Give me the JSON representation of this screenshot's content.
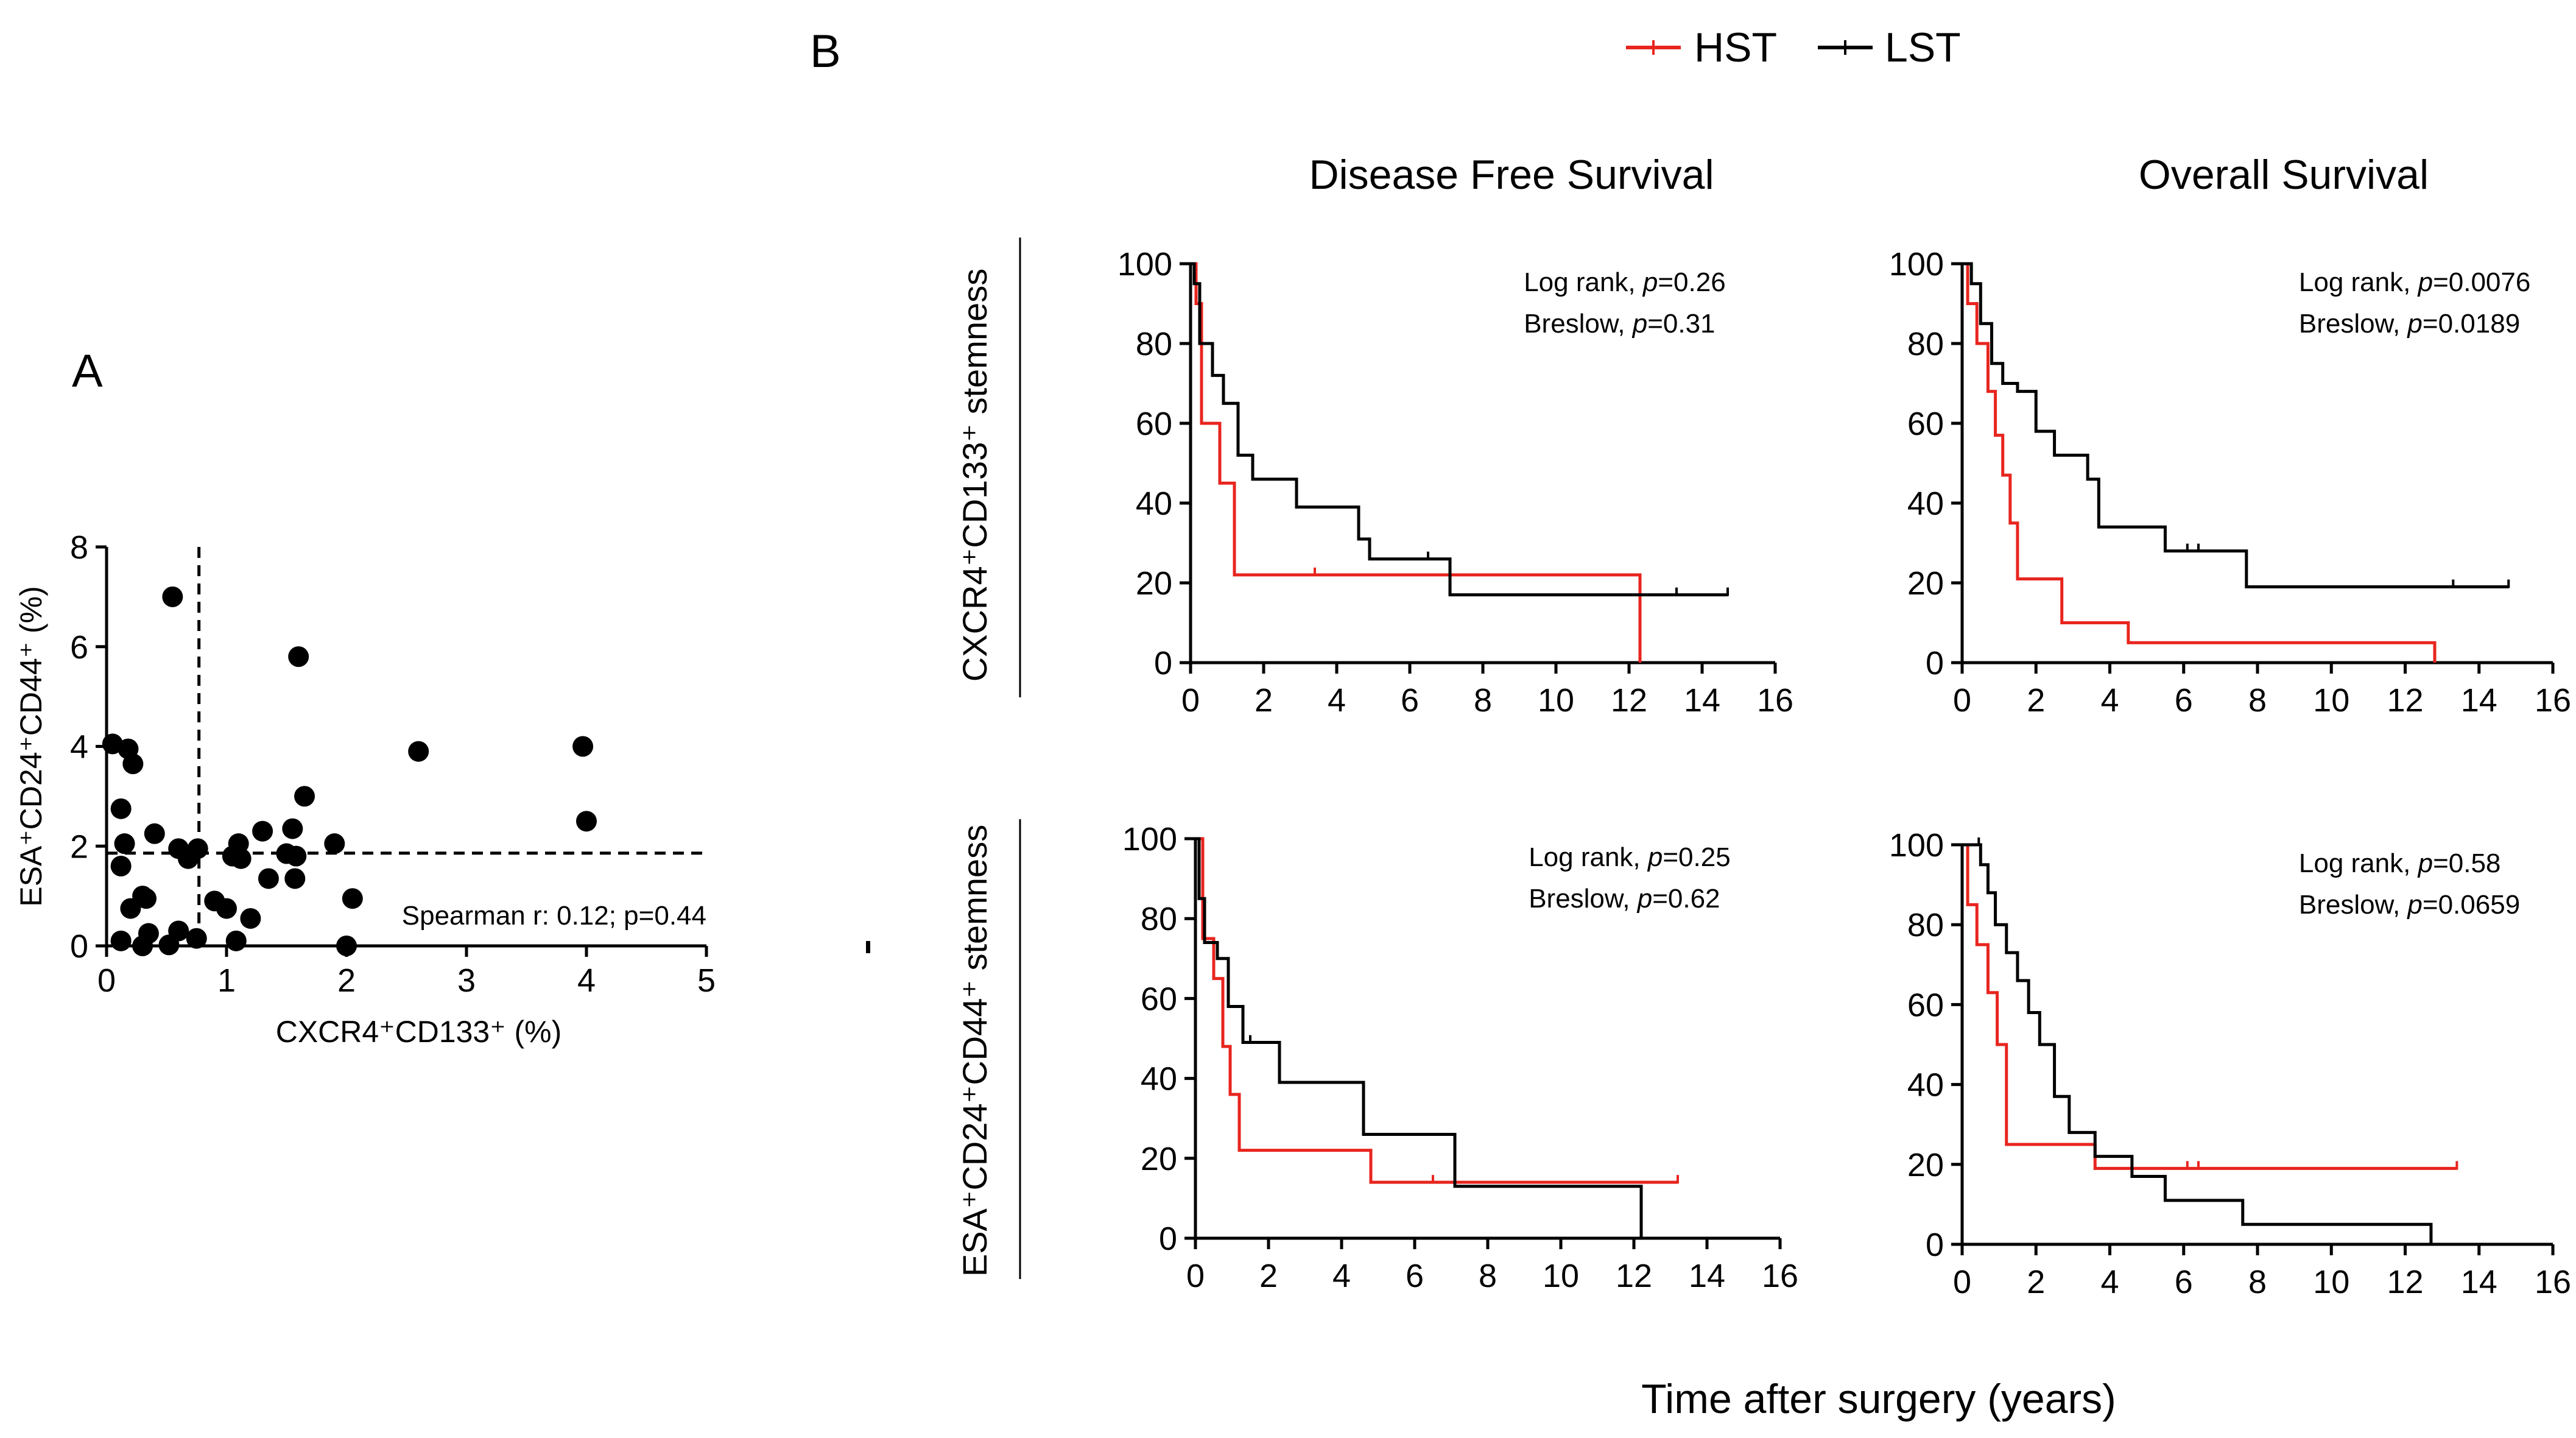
{
  "figure": {
    "panel_a_label": "A",
    "panel_b_label": "B",
    "legend": [
      {
        "name": "HST",
        "color": "#e8251f"
      },
      {
        "name": "LST",
        "color": "#000000"
      }
    ],
    "column_titles": [
      "Disease Free Survival",
      "Overall Survival"
    ],
    "row_labels": [
      "CXCR4⁺CD133⁺ stemness",
      "ESA⁺CD24⁺CD44⁺ stemness"
    ],
    "shared_xlabel": "Time after surgery (years)"
  },
  "chart_data": [
    {
      "id": "A",
      "type": "scatter",
      "xlabel": "CXCR4⁺CD133⁺ (%)",
      "ylabel": "ESA⁺CD24⁺CD44⁺ (%)",
      "xlim": [
        0,
        5
      ],
      "ylim": [
        0,
        8
      ],
      "xticks": [
        0,
        1,
        2,
        3,
        4,
        5
      ],
      "yticks": [
        0,
        2,
        4,
        6,
        8
      ],
      "cutoff_x": 0.77,
      "cutoff_y": 1.86,
      "annotation": "Spearman r: 0.12; p=0.44",
      "points": [
        [
          0.05,
          4.05
        ],
        [
          0.18,
          3.95
        ],
        [
          0.22,
          3.65
        ],
        [
          0.12,
          2.75
        ],
        [
          0.15,
          2.05
        ],
        [
          0.12,
          1.6
        ],
        [
          0.2,
          0.75
        ],
        [
          0.12,
          0.1
        ],
        [
          0.3,
          1.0
        ],
        [
          0.33,
          0.95
        ],
        [
          0.4,
          2.25
        ],
        [
          0.35,
          0.25
        ],
        [
          0.3,
          0.0
        ],
        [
          0.52,
          0.02
        ],
        [
          0.6,
          1.95
        ],
        [
          0.6,
          0.3
        ],
        [
          0.68,
          1.75
        ],
        [
          0.76,
          1.95
        ],
        [
          0.75,
          0.15
        ],
        [
          0.55,
          7.0
        ],
        [
          0.9,
          0.9
        ],
        [
          1.0,
          0.75
        ],
        [
          1.05,
          1.8
        ],
        [
          1.1,
          2.05
        ],
        [
          1.08,
          0.1
        ],
        [
          1.12,
          1.75
        ],
        [
          1.2,
          0.55
        ],
        [
          1.3,
          2.3
        ],
        [
          1.35,
          1.35
        ],
        [
          1.5,
          1.85
        ],
        [
          1.55,
          2.35
        ],
        [
          1.57,
          1.35
        ],
        [
          1.58,
          1.8
        ],
        [
          1.65,
          3.0
        ],
        [
          1.6,
          5.8
        ],
        [
          1.9,
          2.05
        ],
        [
          2.05,
          0.95
        ],
        [
          2.0,
          0.0
        ],
        [
          2.6,
          3.9
        ],
        [
          3.97,
          4.0
        ],
        [
          4.0,
          2.5
        ]
      ]
    },
    {
      "id": "B-DFS-CXCR4",
      "type": "line",
      "title": "Disease Free Survival",
      "row": "CXCR4⁺CD133⁺ stemness",
      "xlim": [
        0,
        16
      ],
      "ylim": [
        0,
        100
      ],
      "xticks": [
        0,
        2,
        4,
        6,
        8,
        10,
        12,
        14,
        16
      ],
      "yticks": [
        0,
        20,
        40,
        60,
        80,
        100
      ],
      "stats": [
        {
          "test": "Log rank",
          "p": "0.26"
        },
        {
          "test": "Breslow",
          "p": "0.31"
        }
      ],
      "series": [
        {
          "name": "HST",
          "color": "#e8251f",
          "steps": [
            [
              0,
              100
            ],
            [
              0.15,
              90
            ],
            [
              0.3,
              60
            ],
            [
              0.8,
              45
            ],
            [
              1.2,
              22
            ],
            [
              12.3,
              22
            ],
            [
              12.3,
              0
            ]
          ],
          "censors": [
            [
              3.4,
              22
            ]
          ]
        },
        {
          "name": "LST",
          "color": "#000000",
          "steps": [
            [
              0,
              100
            ],
            [
              0.1,
              95
            ],
            [
              0.25,
              80
            ],
            [
              0.6,
              72
            ],
            [
              0.9,
              65
            ],
            [
              1.3,
              52
            ],
            [
              1.7,
              46
            ],
            [
              2.9,
              39
            ],
            [
              4.6,
              31
            ],
            [
              4.9,
              26
            ],
            [
              7.1,
              17
            ],
            [
              14.7,
              17
            ]
          ],
          "censors": [
            [
              6.5,
              26
            ],
            [
              13.3,
              17
            ],
            [
              14.7,
              17
            ]
          ]
        }
      ]
    },
    {
      "id": "B-OS-CXCR4",
      "type": "line",
      "title": "Overall Survival",
      "row": "CXCR4⁺CD133⁺ stemness",
      "xlim": [
        0,
        16
      ],
      "ylim": [
        0,
        100
      ],
      "xticks": [
        0,
        2,
        4,
        6,
        8,
        10,
        12,
        14,
        16
      ],
      "yticks": [
        0,
        20,
        40,
        60,
        80,
        100
      ],
      "stats": [
        {
          "test": "Log rank",
          "p": "0.0076"
        },
        {
          "test": "Breslow",
          "p": "0.0189"
        }
      ],
      "series": [
        {
          "name": "HST",
          "color": "#e8251f",
          "steps": [
            [
              0,
              100
            ],
            [
              0.15,
              90
            ],
            [
              0.4,
              80
            ],
            [
              0.7,
              68
            ],
            [
              0.9,
              57
            ],
            [
              1.1,
              47
            ],
            [
              1.3,
              35
            ],
            [
              1.5,
              21
            ],
            [
              2.7,
              10
            ],
            [
              4.5,
              5
            ],
            [
              12.8,
              5
            ],
            [
              12.8,
              0
            ]
          ],
          "censors": []
        },
        {
          "name": "LST",
          "color": "#000000",
          "steps": [
            [
              0,
              100
            ],
            [
              0.25,
              95
            ],
            [
              0.5,
              85
            ],
            [
              0.8,
              75
            ],
            [
              1.1,
              70
            ],
            [
              1.5,
              68
            ],
            [
              2.0,
              58
            ],
            [
              2.5,
              52
            ],
            [
              3.4,
              46
            ],
            [
              3.7,
              34
            ],
            [
              5.5,
              28
            ],
            [
              7.7,
              19
            ],
            [
              14.8,
              19
            ]
          ],
          "censors": [
            [
              6.1,
              28
            ],
            [
              6.4,
              28
            ],
            [
              13.3,
              19
            ],
            [
              14.8,
              19
            ]
          ]
        }
      ]
    },
    {
      "id": "B-DFS-ESA",
      "type": "line",
      "title": "Disease Free Survival",
      "row": "ESA⁺CD24⁺CD44⁺ stemness",
      "xlim": [
        0,
        16
      ],
      "ylim": [
        0,
        100
      ],
      "xticks": [
        0,
        2,
        4,
        6,
        8,
        10,
        12,
        14,
        16
      ],
      "yticks": [
        0,
        20,
        40,
        60,
        80,
        100
      ],
      "stats": [
        {
          "test": "Log rank",
          "p": "0.25"
        },
        {
          "test": "Breslow",
          "p": "0.62"
        }
      ],
      "series": [
        {
          "name": "HST",
          "color": "#e8251f",
          "steps": [
            [
              0,
              100
            ],
            [
              0.2,
              75
            ],
            [
              0.5,
              65
            ],
            [
              0.75,
              48
            ],
            [
              0.95,
              36
            ],
            [
              1.2,
              22
            ],
            [
              4.8,
              14
            ],
            [
              13.2,
              14
            ]
          ],
          "censors": [
            [
              6.5,
              14
            ],
            [
              13.2,
              14
            ]
          ]
        },
        {
          "name": "LST",
          "color": "#000000",
          "steps": [
            [
              0,
              100
            ],
            [
              0.1,
              85
            ],
            [
              0.25,
              74
            ],
            [
              0.6,
              70
            ],
            [
              0.9,
              58
            ],
            [
              1.3,
              49
            ],
            [
              2.3,
              39
            ],
            [
              4.6,
              26
            ],
            [
              7.1,
              13
            ],
            [
              12.2,
              13
            ],
            [
              12.2,
              0
            ]
          ],
          "censors": [
            [
              1.5,
              49
            ]
          ]
        }
      ]
    },
    {
      "id": "B-OS-ESA",
      "type": "line",
      "title": "Overall Survival",
      "row": "ESA⁺CD24⁺CD44⁺ stemness",
      "xlim": [
        0,
        16
      ],
      "ylim": [
        0,
        100
      ],
      "xticks": [
        0,
        2,
        4,
        6,
        8,
        10,
        12,
        14,
        16
      ],
      "yticks": [
        0,
        20,
        40,
        60,
        80,
        100
      ],
      "stats": [
        {
          "test": "Log rank",
          "p": "0.58"
        },
        {
          "test": "Breslow",
          "p": "0.0659"
        }
      ],
      "series": [
        {
          "name": "HST",
          "color": "#e8251f",
          "steps": [
            [
              0,
              100
            ],
            [
              0.15,
              85
            ],
            [
              0.4,
              75
            ],
            [
              0.7,
              63
            ],
            [
              0.95,
              50
            ],
            [
              1.2,
              25
            ],
            [
              3.6,
              19
            ],
            [
              13.4,
              19
            ]
          ],
          "censors": [
            [
              6.1,
              19
            ],
            [
              6.4,
              19
            ],
            [
              13.4,
              19
            ]
          ]
        },
        {
          "name": "LST",
          "color": "#000000",
          "steps": [
            [
              0,
              100
            ],
            [
              0.5,
              95
            ],
            [
              0.7,
              88
            ],
            [
              0.9,
              80
            ],
            [
              1.2,
              73
            ],
            [
              1.5,
              66
            ],
            [
              1.8,
              58
            ],
            [
              2.1,
              50
            ],
            [
              2.5,
              37
            ],
            [
              2.9,
              28
            ],
            [
              3.6,
              22
            ],
            [
              4.6,
              17
            ],
            [
              5.5,
              11
            ],
            [
              7.6,
              5
            ],
            [
              12.7,
              5
            ],
            [
              12.7,
              0
            ]
          ],
          "censors": [
            [
              0.45,
              100
            ]
          ]
        }
      ]
    }
  ]
}
